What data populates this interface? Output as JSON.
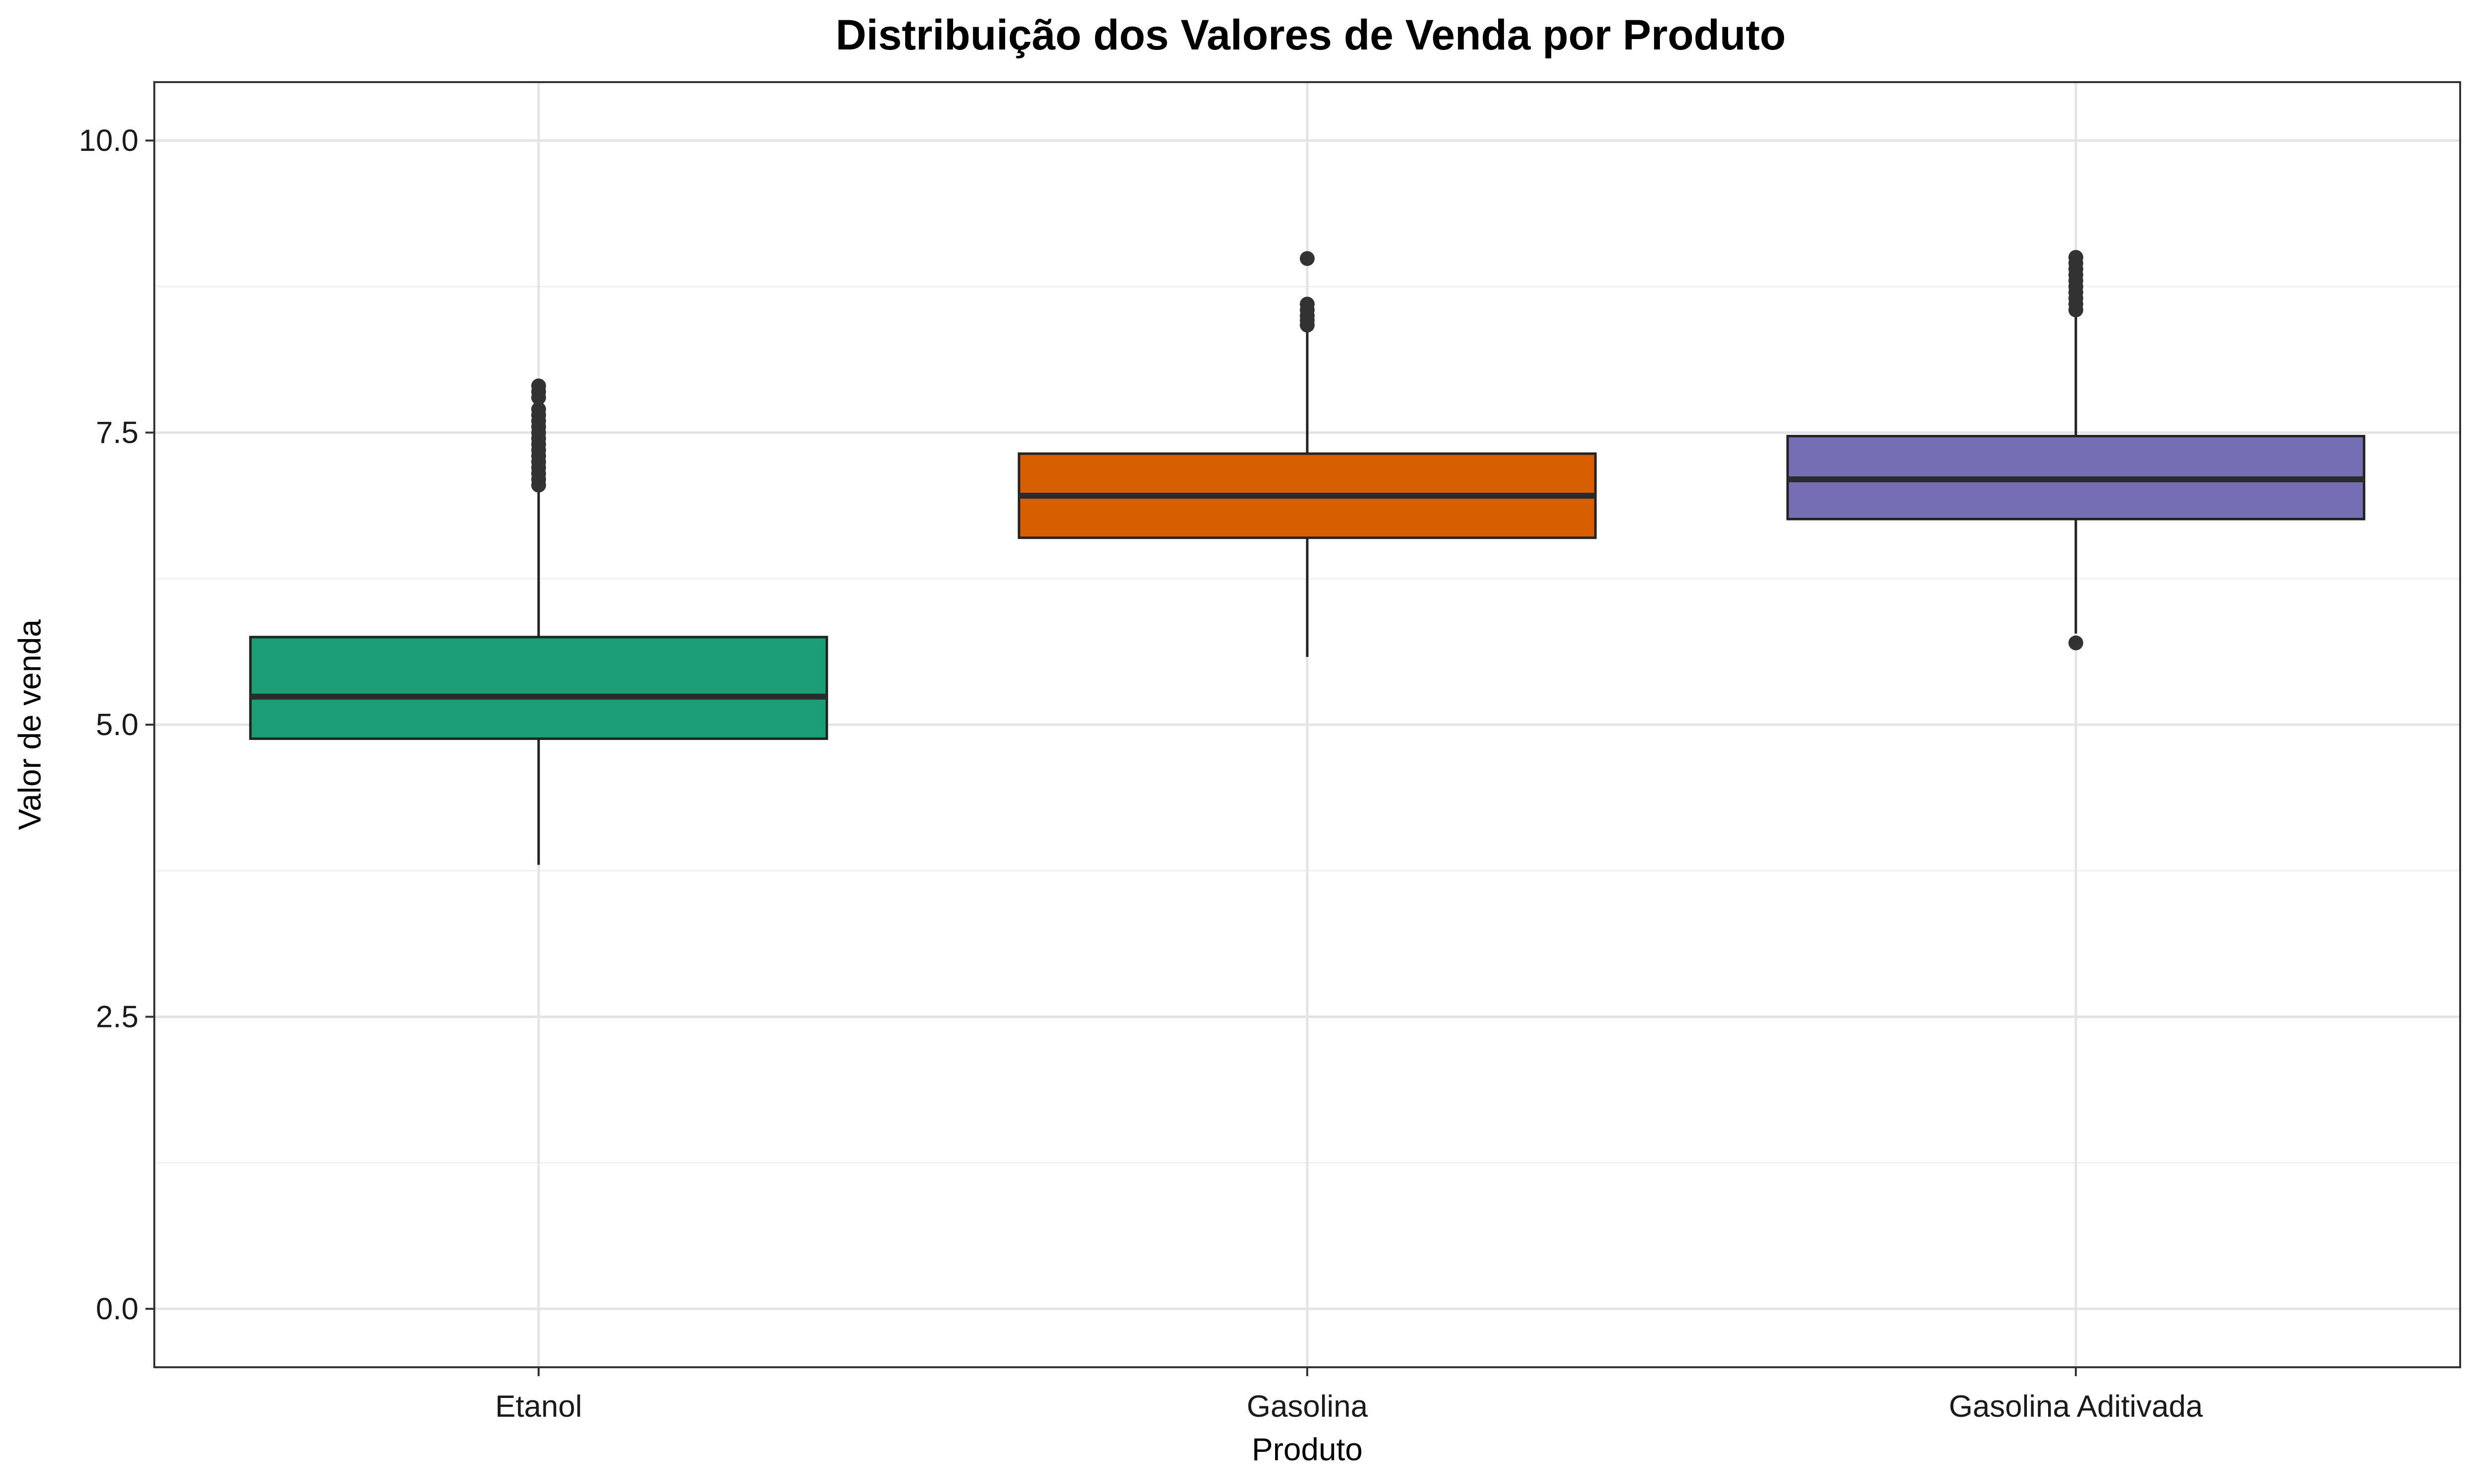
{
  "chart_data": {
    "type": "boxplot",
    "title": "Distribuição dos Valores de Venda por Produto",
    "xlabel": "Produto",
    "ylabel": "Valor de venda",
    "ylim": [
      -0.5,
      10.5
    ],
    "yticks": [
      0.0,
      2.5,
      5.0,
      7.5,
      10.0
    ],
    "ytick_labels": [
      "0.0",
      "2.5",
      "5.0",
      "7.5",
      "10.0"
    ],
    "grid": true,
    "legend": "none",
    "categories": [
      "Etanol",
      "Gasolina",
      "Gasolina Aditivada"
    ],
    "series": [
      {
        "category": "Etanol",
        "color": "#1B9E77",
        "whisker_low": 3.8,
        "q1": 4.88,
        "median": 5.24,
        "q3": 5.75,
        "whisker_high": 7.0,
        "outliers": [
          7.05,
          7.1,
          7.15,
          7.2,
          7.25,
          7.3,
          7.35,
          7.4,
          7.45,
          7.5,
          7.55,
          7.6,
          7.65,
          7.7,
          7.8,
          7.85,
          7.9
        ]
      },
      {
        "category": "Gasolina",
        "color": "#D95F02",
        "whisker_low": 5.58,
        "q1": 6.6,
        "median": 6.96,
        "q3": 7.32,
        "whisker_high": 8.38,
        "outliers": [
          8.42,
          8.46,
          8.5,
          8.55,
          8.6,
          8.99
        ]
      },
      {
        "category": "Gasolina Aditivada",
        "color": "#7570B3",
        "whisker_low": 5.78,
        "q1": 6.76,
        "median": 7.1,
        "q3": 7.47,
        "whisker_high": 8.52,
        "outliers": [
          5.7,
          8.55,
          8.6,
          8.65,
          8.7,
          8.75,
          8.8,
          8.85,
          8.9,
          8.95,
          9.0
        ]
      }
    ]
  }
}
